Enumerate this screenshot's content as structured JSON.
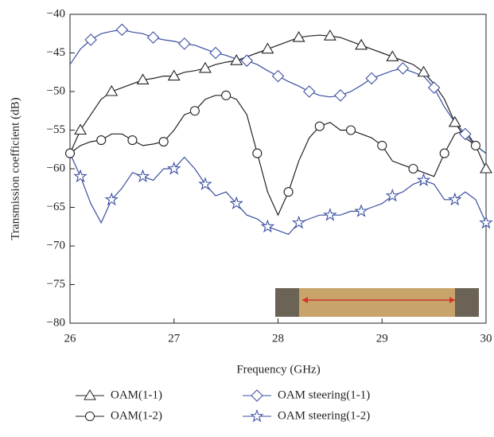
{
  "chart_data": {
    "type": "line",
    "xlabel": "Frequency (GHz)",
    "ylabel": "Transmission coefficient (dB)",
    "xlim": [
      26,
      30
    ],
    "ylim": [
      -80,
      -40
    ],
    "xticks": [
      26,
      27,
      28,
      29,
      30
    ],
    "yticks": [
      {
        "value": -40,
        "label": "−40"
      },
      {
        "value": -45,
        "label": "−45"
      },
      {
        "value": -50,
        "label": "−50"
      },
      {
        "value": -55,
        "label": "−55"
      },
      {
        "value": -60,
        "label": "−60"
      },
      {
        "value": -65,
        "label": "−65"
      },
      {
        "value": -70,
        "label": "−70"
      },
      {
        "value": -75,
        "label": "−75"
      },
      {
        "value": -80,
        "label": "−80"
      }
    ],
    "x": [
      26.0,
      26.1,
      26.2,
      26.3,
      26.4,
      26.5,
      26.6,
      26.7,
      26.8,
      26.9,
      27.0,
      27.1,
      27.2,
      27.3,
      27.4,
      27.5,
      27.6,
      27.7,
      27.8,
      27.9,
      28.0,
      28.1,
      28.2,
      28.3,
      28.4,
      28.5,
      28.6,
      28.7,
      28.8,
      28.9,
      29.0,
      29.1,
      29.2,
      29.3,
      29.4,
      29.5,
      29.6,
      29.7,
      29.8,
      29.9,
      30.0
    ],
    "series": [
      {
        "name": "OAM(1-1)",
        "color": "#222222",
        "marker": "triangle",
        "values": [
          -58,
          -55,
          -53,
          -51,
          -50,
          -49.5,
          -49,
          -48.5,
          -48.3,
          -48,
          -48,
          -47.5,
          -47.3,
          -47,
          -46.5,
          -46.2,
          -46,
          -45.5,
          -45,
          -44.5,
          -44,
          -43.5,
          -43,
          -42.8,
          -42.7,
          -42.8,
          -43,
          -43.5,
          -44,
          -44.5,
          -45,
          -45.5,
          -46,
          -46.5,
          -47.5,
          -49,
          -51,
          -54,
          -56,
          -57,
          -60
        ]
      },
      {
        "name": "OAM(1-2)",
        "color": "#222222",
        "marker": "circle",
        "values": [
          -58,
          -57,
          -56.5,
          -56.3,
          -55.5,
          -55.5,
          -56.3,
          -57,
          -56.8,
          -56.5,
          -55,
          -53,
          -52.5,
          -51,
          -50.5,
          -50.5,
          -51,
          -53,
          -58,
          -63,
          -66,
          -63,
          -59,
          -56,
          -54.5,
          -54,
          -55,
          -55,
          -55.5,
          -56,
          -57,
          -59,
          -59.5,
          -60,
          -60.5,
          -61,
          -58,
          -55.5,
          -55,
          -57,
          -58
        ]
      },
      {
        "name": "OAM steering(1-1)",
        "color": "#3b4fa0",
        "marker": "diamond",
        "values": [
          -46.5,
          -44.5,
          -43.3,
          -42.5,
          -42.2,
          -42,
          -42.3,
          -42.5,
          -43,
          -43.3,
          -43.5,
          -43.8,
          -44,
          -44.5,
          -45,
          -45.3,
          -45.8,
          -46,
          -46.5,
          -47.3,
          -48,
          -48.7,
          -49.3,
          -50,
          -50.5,
          -50.7,
          -50.5,
          -50,
          -49.2,
          -48.3,
          -47.8,
          -47.3,
          -47,
          -47.5,
          -48,
          -49.5,
          -52,
          -54,
          -55.5,
          -57,
          -58
        ]
      },
      {
        "name": "OAM steering(1-2)",
        "color": "#3b4fa0",
        "marker": "star",
        "values": [
          -58,
          -61,
          -64.5,
          -67,
          -64,
          -62.5,
          -60.5,
          -61,
          -61.5,
          -60,
          -60,
          -58.5,
          -60,
          -62,
          -63.5,
          -63,
          -64.5,
          -66,
          -66.5,
          -67.5,
          -68,
          -68.5,
          -67,
          -66.5,
          -66,
          -66,
          -66,
          -65.5,
          -65.5,
          -65,
          -64.5,
          -63.5,
          -63,
          -62,
          -61.5,
          -62,
          -64,
          -64,
          -63,
          -64,
          -67
        ]
      }
    ]
  }
}
